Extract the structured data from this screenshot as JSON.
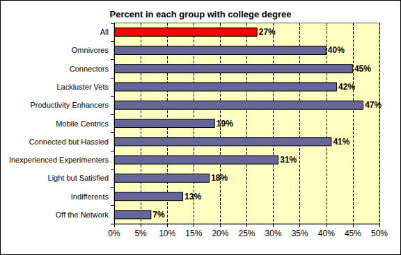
{
  "chart_data": {
    "type": "bar",
    "title": "Percent in each group with college degree",
    "orientation": "horizontal",
    "categories": [
      "All",
      "Omnivores",
      "Connectors",
      "Lackluster Vets",
      "Productivity Enhancers",
      "Mobile Centrics",
      "Connected but Hassled",
      "Inexperienced Experimenters",
      "Light but Satisfied",
      "Indifferents",
      "Off the Network"
    ],
    "values": [
      27,
      40,
      45,
      42,
      47,
      19,
      41,
      31,
      18,
      13,
      7
    ],
    "value_labels": [
      "27%",
      "40%",
      "45%",
      "42%",
      "47%",
      "19%",
      "41%",
      "31%",
      "18%",
      "13%",
      "7%"
    ],
    "colors": [
      "#ff0000",
      "#666699",
      "#666699",
      "#666699",
      "#666699",
      "#666699",
      "#666699",
      "#666699",
      "#666699",
      "#666699",
      "#666699"
    ],
    "data_labels": true,
    "xlim": [
      0,
      50
    ],
    "xticks": [
      {
        "value": 0,
        "label": "0%"
      },
      {
        "value": 5,
        "label": "5%"
      },
      {
        "value": 10,
        "label": "10%"
      },
      {
        "value": 15,
        "label": "15%"
      },
      {
        "value": 20,
        "label": "20%"
      },
      {
        "value": 25,
        "label": "25%"
      },
      {
        "value": 30,
        "label": "30%"
      },
      {
        "value": 35,
        "label": "35%"
      },
      {
        "value": 40,
        "label": "40%"
      },
      {
        "value": 45,
        "label": "45%"
      },
      {
        "value": 50,
        "label": "50%"
      }
    ],
    "grid": true
  }
}
